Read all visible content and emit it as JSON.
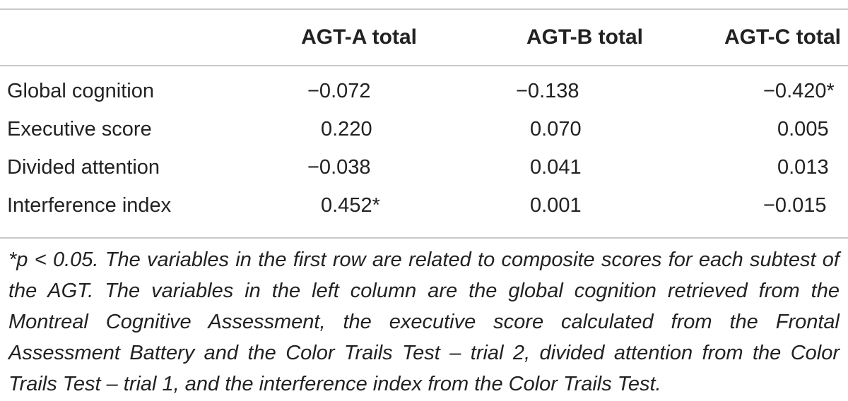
{
  "table": {
    "columns": [
      "",
      "AGT-A total",
      "AGT-B total",
      "AGT-C total"
    ],
    "rows": [
      {
        "label": "Global cognition",
        "a": "−0.072",
        "b": "−0.138",
        "c": "−0.420*"
      },
      {
        "label": "Executive score",
        "a": "0.220",
        "b": "0.070",
        "c": "0.005"
      },
      {
        "label": "Divided attention",
        "a": "−0.038",
        "b": "0.041",
        "c": "0.013"
      },
      {
        "label": "Interference index",
        "a": "0.452*",
        "b": "0.001",
        "c": "−0.015"
      }
    ]
  },
  "footnote": "*p < 0.05. The variables in the first row are related to composite scores for each subtest of the AGT. The variables in the left column are the global cognition retrieved from the Montreal Cognitive Assessment, the executive score calculated from the Frontal Assessment Battery and the Color Trails Test – trial 2, divided attention from the Color Trails Test – trial 1, and the interference index from the Color Trails Test."
}
